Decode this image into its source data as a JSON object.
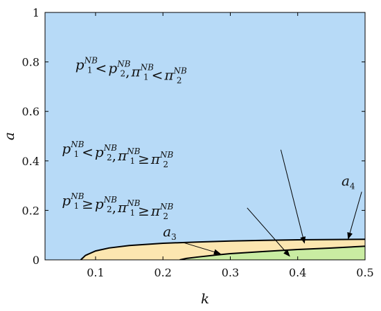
{
  "chart_data": {
    "type": "area",
    "xlabel": "k",
    "ylabel": "a",
    "xlim": [
      0.025,
      0.5
    ],
    "ylim": [
      0,
      1
    ],
    "xticks": [
      "0.1",
      "0.2",
      "0.3",
      "0.4",
      "0.5"
    ],
    "yticks": [
      "0",
      "0.2",
      "0.4",
      "0.6",
      "0.8",
      "1"
    ],
    "grid": false,
    "colors": {
      "upper_region": "#b7daf7",
      "middle_region": "#fce6b0",
      "lower_region": "#c9eca2",
      "boundary": "#000000"
    },
    "boundaries": [
      {
        "name": "a_3",
        "x": [
          0.078,
          0.085,
          0.1,
          0.12,
          0.15,
          0.2,
          0.25,
          0.3,
          0.35,
          0.4,
          0.45,
          0.5
        ],
        "y": [
          0,
          0.018,
          0.036,
          0.048,
          0.058,
          0.067,
          0.072,
          0.076,
          0.079,
          0.081,
          0.082,
          0.083
        ]
      },
      {
        "name": "a_4",
        "x": [
          0.225,
          0.235,
          0.25,
          0.28,
          0.3,
          0.35,
          0.4,
          0.45,
          0.5
        ],
        "y": [
          0,
          0.006,
          0.011,
          0.02,
          0.025,
          0.034,
          0.042,
          0.048,
          0.055
        ]
      }
    ],
    "region_labels": [
      {
        "parts": [
          [
            "p",
            "NB",
            "1"
          ],
          [
            "<"
          ],
          [
            "p",
            "NB",
            "2"
          ],
          [
            ","
          ],
          [
            "π",
            "NB",
            "1"
          ],
          [
            "<"
          ],
          [
            "π",
            "NB",
            "2"
          ]
        ],
        "x": 0.07,
        "y": 0.77
      },
      {
        "parts": [
          [
            "p",
            "NB",
            "1"
          ],
          [
            "<"
          ],
          [
            "p",
            "NB",
            "2"
          ],
          [
            ","
          ],
          [
            "π",
            "NB",
            "1"
          ],
          [
            "≥"
          ],
          [
            "π",
            "NB",
            "2"
          ]
        ],
        "x": 0.05,
        "y": 0.43
      },
      {
        "parts": [
          [
            "p",
            "NB",
            "1"
          ],
          [
            "≥"
          ],
          [
            "p",
            "NB",
            "2"
          ],
          [
            ","
          ],
          [
            "π",
            "NB",
            "1"
          ],
          [
            "≥"
          ],
          [
            "π",
            "NB",
            "2"
          ]
        ],
        "x": 0.05,
        "y": 0.22
      }
    ],
    "annotations": [
      {
        "base": "a",
        "sub": "3",
        "text_x": 0.2,
        "text_y": 0.095,
        "arrow_to_x": 0.285,
        "arrow_to_y": 0.025
      },
      {
        "base": "a",
        "sub": "4",
        "text_x": 0.465,
        "text_y": 0.3,
        "arrow_to_x": 0.475,
        "arrow_to_y": 0.085
      }
    ],
    "region_arrows": [
      {
        "from_x": 0.375,
        "from_y": 0.445,
        "to_x": 0.41,
        "to_y": 0.068
      },
      {
        "from_x": 0.325,
        "from_y": 0.21,
        "to_x": 0.388,
        "to_y": 0.015
      }
    ]
  }
}
